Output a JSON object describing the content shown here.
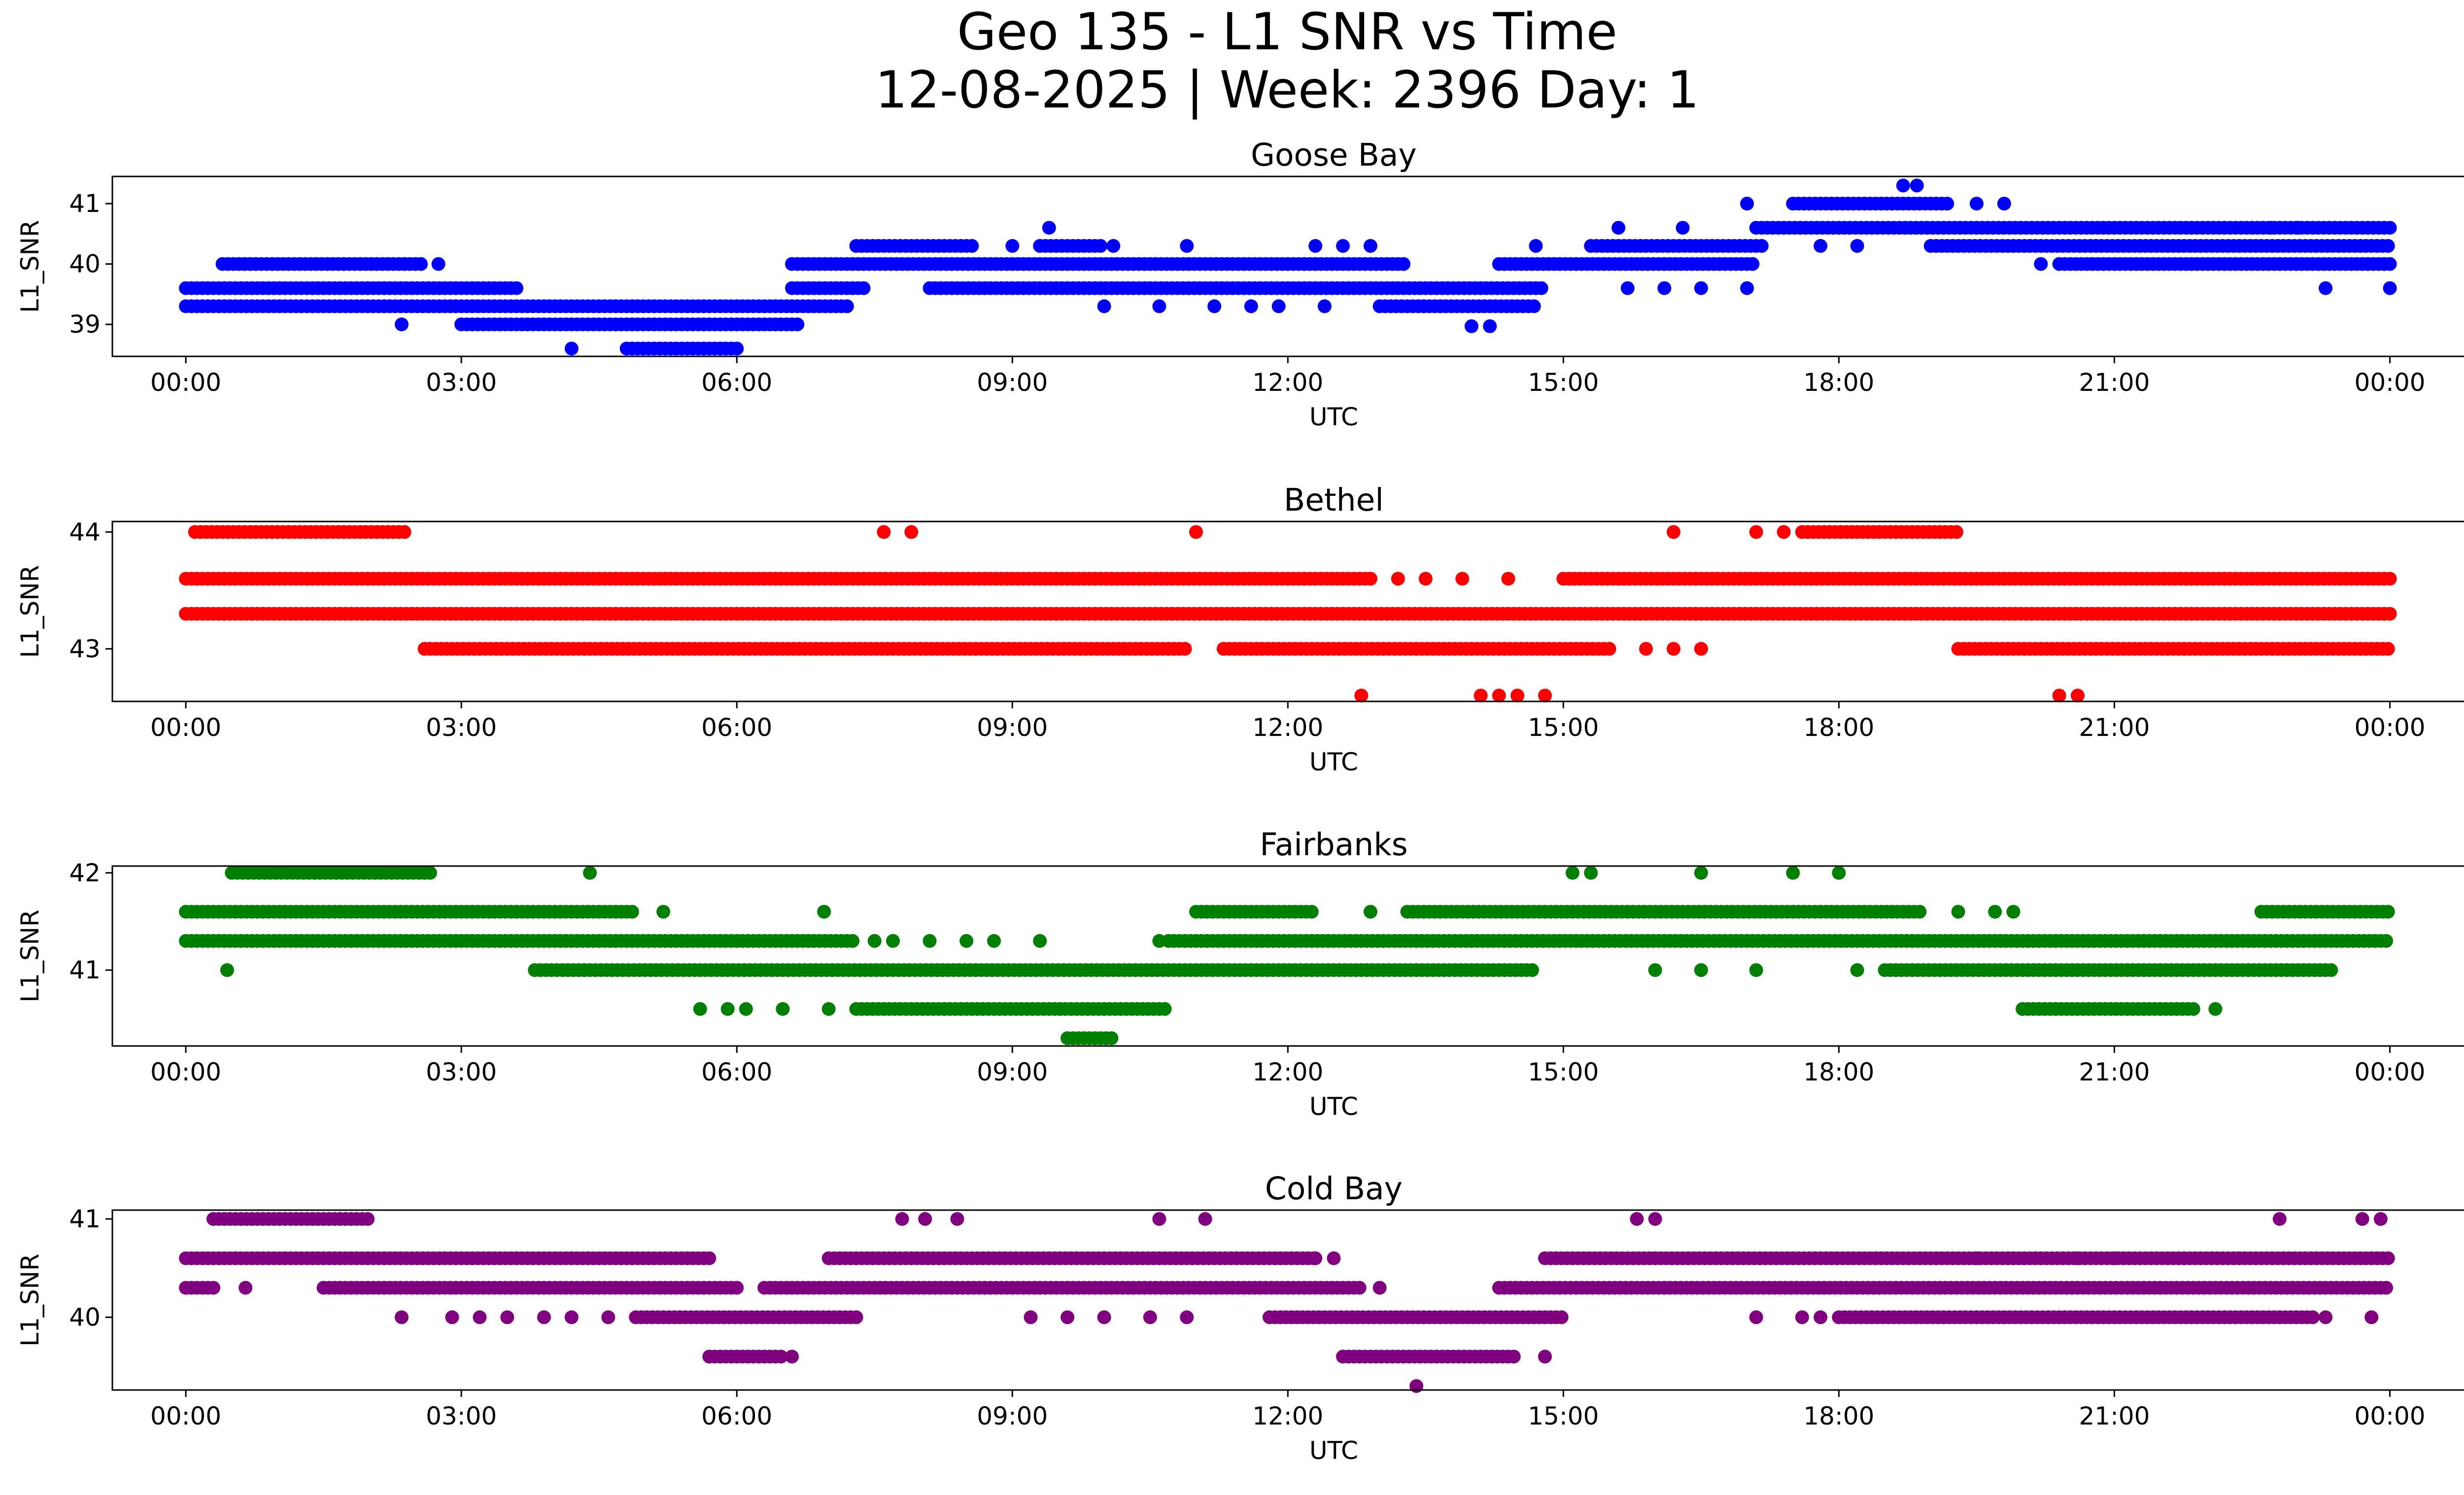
{
  "figure": {
    "title_line1": "Geo 135 - L1 SNR vs Time",
    "title_line2": "12-08-2025 | Week: 2396 Day: 1"
  },
  "chart_data": [
    {
      "type": "scatter",
      "title": "Goose Bay",
      "xlabel": "UTC",
      "ylabel": "L1_SNR",
      "color": "#0000ff",
      "xlim": [
        -0.8,
        25.8
      ],
      "ylim": [
        38.47,
        41.45
      ],
      "x_ticks": [
        "00:00",
        "03:00",
        "06:00",
        "09:00",
        "12:00",
        "15:00",
        "18:00",
        "21:00",
        "00:00"
      ],
      "y_ticks": [
        39,
        40,
        41
      ],
      "segments": [
        {
          "y": 39.6,
          "ranges": [
            [
              0.0,
              3.6
            ],
            [
              6.6,
              7.4
            ],
            [
              8.1,
              14.8
            ]
          ]
        },
        {
          "y": 39.3,
          "ranges": [
            [
              0.0,
              7.2
            ],
            [
              13.0,
              14.7
            ]
          ]
        },
        {
          "y": 40.0,
          "ranges": [
            [
              0.4,
              2.6
            ],
            [
              6.6,
              13.3
            ],
            [
              14.3,
              17.1
            ],
            [
              20.4,
              24.0
            ]
          ]
        },
        {
          "y": 39.0,
          "ranges": [
            [
              3.0,
              6.7
            ]
          ]
        },
        {
          "y": 38.6,
          "ranges": [
            [
              4.8,
              6.0
            ]
          ]
        },
        {
          "y": 40.3,
          "ranges": [
            [
              7.3,
              8.6
            ],
            [
              9.3,
              10.0
            ],
            [
              15.3,
              17.2
            ],
            [
              19.0,
              24.0
            ]
          ]
        },
        {
          "y": 40.6,
          "ranges": [
            [
              17.1,
              24.0
            ]
          ]
        },
        {
          "y": 41.0,
          "ranges": [
            [
              17.5,
              19.2
            ]
          ]
        }
      ],
      "points": [
        {
          "x": 2.75,
          "y": 40.0
        },
        {
          "x": 2.35,
          "y": 39.0
        },
        {
          "x": 4.2,
          "y": 38.6
        },
        {
          "x": 9.4,
          "y": 40.6
        },
        {
          "x": 9.0,
          "y": 40.3
        },
        {
          "x": 10.1,
          "y": 40.3
        },
        {
          "x": 10.9,
          "y": 40.3
        },
        {
          "x": 12.3,
          "y": 40.3
        },
        {
          "x": 12.6,
          "y": 40.3
        },
        {
          "x": 12.9,
          "y": 40.3
        },
        {
          "x": 10.0,
          "y": 39.3
        },
        {
          "x": 10.6,
          "y": 39.3
        },
        {
          "x": 11.2,
          "y": 39.3
        },
        {
          "x": 11.6,
          "y": 39.3
        },
        {
          "x": 11.9,
          "y": 39.3
        },
        {
          "x": 12.4,
          "y": 39.3
        },
        {
          "x": 14.0,
          "y": 38.97
        },
        {
          "x": 14.2,
          "y": 38.97
        },
        {
          "x": 14.7,
          "y": 40.3
        },
        {
          "x": 15.6,
          "y": 40.6
        },
        {
          "x": 16.3,
          "y": 40.6
        },
        {
          "x": 15.7,
          "y": 39.6
        },
        {
          "x": 16.1,
          "y": 39.6
        },
        {
          "x": 16.5,
          "y": 39.6
        },
        {
          "x": 17.0,
          "y": 39.6
        },
        {
          "x": 17.0,
          "y": 41.0
        },
        {
          "x": 18.7,
          "y": 41.3
        },
        {
          "x": 18.85,
          "y": 41.3
        },
        {
          "x": 19.5,
          "y": 41.0
        },
        {
          "x": 19.8,
          "y": 41.0
        },
        {
          "x": 20.2,
          "y": 40.0
        },
        {
          "x": 23.0,
          "y": 40.6
        },
        {
          "x": 22.7,
          "y": 40.6
        },
        {
          "x": 18.2,
          "y": 40.3
        },
        {
          "x": 17.8,
          "y": 40.3
        },
        {
          "x": 23.3,
          "y": 39.6
        },
        {
          "x": 24.0,
          "y": 39.6
        }
      ]
    },
    {
      "type": "scatter",
      "title": "Bethel",
      "xlabel": "UTC",
      "ylabel": "L1_SNR",
      "color": "#ff0000",
      "xlim": [
        -0.8,
        25.8
      ],
      "ylim": [
        42.55,
        44.09
      ],
      "x_ticks": [
        "00:00",
        "03:00",
        "06:00",
        "09:00",
        "12:00",
        "15:00",
        "18:00",
        "21:00",
        "00:00"
      ],
      "y_ticks": [
        43,
        44
      ],
      "segments": [
        {
          "y": 43.6,
          "ranges": [
            [
              0.0,
              12.9
            ],
            [
              15.0,
              24.0
            ]
          ]
        },
        {
          "y": 43.3,
          "ranges": [
            [
              0.0,
              24.0
            ]
          ]
        },
        {
          "y": 44.0,
          "ranges": [
            [
              0.1,
              2.4
            ],
            [
              17.6,
              19.3
            ]
          ]
        },
        {
          "y": 43.0,
          "ranges": [
            [
              2.6,
              10.9
            ],
            [
              11.3,
              15.5
            ],
            [
              19.3,
              24.0
            ]
          ]
        }
      ],
      "points": [
        {
          "x": 7.6,
          "y": 44.0
        },
        {
          "x": 7.9,
          "y": 44.0
        },
        {
          "x": 11.0,
          "y": 44.0
        },
        {
          "x": 16.2,
          "y": 44.0
        },
        {
          "x": 17.1,
          "y": 44.0
        },
        {
          "x": 17.4,
          "y": 44.0
        },
        {
          "x": 13.2,
          "y": 43.6
        },
        {
          "x": 13.5,
          "y": 43.6
        },
        {
          "x": 13.9,
          "y": 43.6
        },
        {
          "x": 14.4,
          "y": 43.6
        },
        {
          "x": 15.9,
          "y": 43.0
        },
        {
          "x": 16.2,
          "y": 43.0
        },
        {
          "x": 16.5,
          "y": 43.0
        },
        {
          "x": 12.8,
          "y": 42.6
        },
        {
          "x": 14.1,
          "y": 42.6
        },
        {
          "x": 14.3,
          "y": 42.6
        },
        {
          "x": 14.5,
          "y": 42.6
        },
        {
          "x": 14.8,
          "y": 42.6
        },
        {
          "x": 20.4,
          "y": 42.6
        },
        {
          "x": 20.6,
          "y": 42.6
        }
      ]
    },
    {
      "type": "scatter",
      "title": "Fairbanks",
      "xlabel": "UTC",
      "ylabel": "L1_SNR",
      "color": "#008000",
      "xlim": [
        -0.8,
        25.8
      ],
      "ylim": [
        40.22,
        42.07
      ],
      "x_ticks": [
        "00:00",
        "03:00",
        "06:00",
        "09:00",
        "12:00",
        "15:00",
        "18:00",
        "21:00",
        "00:00"
      ],
      "y_ticks": [
        41,
        42
      ],
      "segments": [
        {
          "y": 41.6,
          "ranges": [
            [
              0.0,
              4.9
            ],
            [
              11.0,
              12.3
            ],
            [
              13.3,
              18.9
            ],
            [
              22.6,
              24.0
            ]
          ]
        },
        {
          "y": 41.3,
          "ranges": [
            [
              0.0,
              7.3
            ],
            [
              10.7,
              24.0
            ]
          ]
        },
        {
          "y": 42.0,
          "ranges": [
            [
              0.5,
              2.7
            ]
          ]
        },
        {
          "y": 41.0,
          "ranges": [
            [
              3.8,
              14.7
            ],
            [
              18.5,
              23.4
            ]
          ]
        },
        {
          "y": 40.6,
          "ranges": [
            [
              7.3,
              10.7
            ],
            [
              20.0,
              21.9
            ]
          ]
        },
        {
          "y": 40.3,
          "ranges": [
            [
              9.6,
              10.1
            ]
          ]
        }
      ],
      "points": [
        {
          "x": 0.45,
          "y": 41.0
        },
        {
          "x": 4.4,
          "y": 42.0
        },
        {
          "x": 5.2,
          "y": 41.6
        },
        {
          "x": 6.95,
          "y": 41.6
        },
        {
          "x": 7.5,
          "y": 41.3
        },
        {
          "x": 7.7,
          "y": 41.3
        },
        {
          "x": 8.1,
          "y": 41.3
        },
        {
          "x": 8.5,
          "y": 41.3
        },
        {
          "x": 8.8,
          "y": 41.3
        },
        {
          "x": 9.3,
          "y": 41.3
        },
        {
          "x": 10.6,
          "y": 41.3
        },
        {
          "x": 5.6,
          "y": 40.6
        },
        {
          "x": 5.9,
          "y": 40.6
        },
        {
          "x": 6.1,
          "y": 40.6
        },
        {
          "x": 6.5,
          "y": 40.6
        },
        {
          "x": 7.0,
          "y": 40.6
        },
        {
          "x": 12.9,
          "y": 41.6
        },
        {
          "x": 15.1,
          "y": 42.0
        },
        {
          "x": 15.3,
          "y": 42.0
        },
        {
          "x": 16.5,
          "y": 42.0
        },
        {
          "x": 17.5,
          "y": 42.0
        },
        {
          "x": 18.0,
          "y": 42.0
        },
        {
          "x": 19.3,
          "y": 41.6
        },
        {
          "x": 19.7,
          "y": 41.6
        },
        {
          "x": 19.9,
          "y": 41.6
        },
        {
          "x": 16.0,
          "y": 41.0
        },
        {
          "x": 16.5,
          "y": 41.0
        },
        {
          "x": 17.1,
          "y": 41.0
        },
        {
          "x": 18.2,
          "y": 41.0
        },
        {
          "x": 22.1,
          "y": 40.6
        }
      ]
    },
    {
      "type": "scatter",
      "title": "Cold Bay",
      "xlabel": "UTC",
      "ylabel": "L1_SNR",
      "color": "#800080",
      "xlim": [
        -0.8,
        25.8
      ],
      "ylim": [
        39.26,
        41.09
      ],
      "x_ticks": [
        "00:00",
        "03:00",
        "06:00",
        "09:00",
        "12:00",
        "15:00",
        "18:00",
        "21:00",
        "00:00"
      ],
      "y_ticks": [
        40,
        41
      ],
      "segments": [
        {
          "y": 40.6,
          "ranges": [
            [
              0.0,
              5.7
            ],
            [
              7.0,
              12.3
            ],
            [
              14.8,
              24.0
            ]
          ]
        },
        {
          "y": 40.3,
          "ranges": [
            [
              0.0,
              0.3
            ],
            [
              1.5,
              6.0
            ],
            [
              6.3,
              12.8
            ],
            [
              14.3,
              24.0
            ]
          ]
        },
        {
          "y": 41.0,
          "ranges": [
            [
              0.3,
              2.0
            ]
          ]
        },
        {
          "y": 40.0,
          "ranges": [
            [
              4.9,
              7.3
            ],
            [
              11.8,
              15.0
            ],
            [
              18.0,
              23.2
            ]
          ]
        },
        {
          "y": 39.6,
          "ranges": [
            [
              5.7,
              6.5
            ],
            [
              12.6,
              14.5
            ]
          ]
        }
      ],
      "points": [
        {
          "x": 0.65,
          "y": 40.3
        },
        {
          "x": 2.35,
          "y": 40.0
        },
        {
          "x": 2.9,
          "y": 40.0
        },
        {
          "x": 3.2,
          "y": 40.0
        },
        {
          "x": 3.5,
          "y": 40.0
        },
        {
          "x": 3.9,
          "y": 40.0
        },
        {
          "x": 4.2,
          "y": 40.0
        },
        {
          "x": 4.6,
          "y": 40.0
        },
        {
          "x": 6.6,
          "y": 39.6
        },
        {
          "x": 7.8,
          "y": 41.0
        },
        {
          "x": 8.05,
          "y": 41.0
        },
        {
          "x": 8.4,
          "y": 41.0
        },
        {
          "x": 10.6,
          "y": 41.0
        },
        {
          "x": 11.1,
          "y": 41.0
        },
        {
          "x": 9.2,
          "y": 40.0
        },
        {
          "x": 9.6,
          "y": 40.0
        },
        {
          "x": 10.0,
          "y": 40.0
        },
        {
          "x": 10.5,
          "y": 40.0
        },
        {
          "x": 10.9,
          "y": 40.0
        },
        {
          "x": 12.3,
          "y": 40.6
        },
        {
          "x": 12.5,
          "y": 40.6
        },
        {
          "x": 13.0,
          "y": 40.3
        },
        {
          "x": 13.4,
          "y": 39.3
        },
        {
          "x": 14.8,
          "y": 39.6
        },
        {
          "x": 15.8,
          "y": 41.0
        },
        {
          "x": 16.0,
          "y": 41.0
        },
        {
          "x": 17.1,
          "y": 40.0
        },
        {
          "x": 17.6,
          "y": 40.0
        },
        {
          "x": 17.8,
          "y": 40.0
        },
        {
          "x": 23.3,
          "y": 40.0
        },
        {
          "x": 23.8,
          "y": 40.0
        },
        {
          "x": 22.8,
          "y": 41.0
        },
        {
          "x": 23.7,
          "y": 41.0
        },
        {
          "x": 23.9,
          "y": 41.0
        },
        {
          "x": 19.5,
          "y": 40.6
        },
        {
          "x": 19.9,
          "y": 40.6
        },
        {
          "x": 20.2,
          "y": 40.6
        },
        {
          "x": 20.6,
          "y": 40.6
        },
        {
          "x": 21.0,
          "y": 40.6
        }
      ]
    }
  ]
}
